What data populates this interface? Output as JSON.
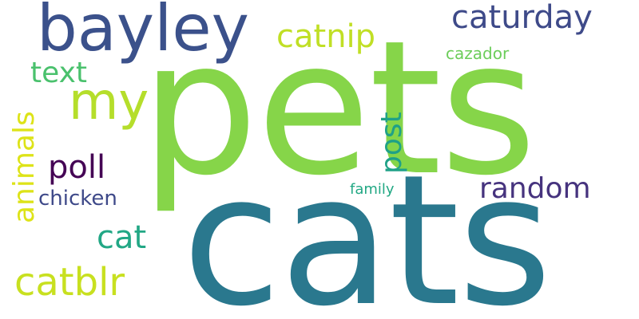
{
  "background": "#ffffff",
  "words": [
    {
      "id": "pets",
      "text": "pets",
      "color": "#86d549"
    },
    {
      "id": "cats",
      "text": "cats",
      "color": "#2a788e"
    },
    {
      "id": "bayley",
      "text": "bayley",
      "color": "#3b518b"
    },
    {
      "id": "caturday",
      "text": "caturday",
      "color": "#3e4a89"
    },
    {
      "id": "catnip",
      "text": "catnip",
      "color": "#c0df25"
    },
    {
      "id": "cazador",
      "text": "cazador",
      "color": "#6ccd5a"
    },
    {
      "id": "text",
      "text": "text",
      "color": "#4ac16d"
    },
    {
      "id": "my",
      "text": "my",
      "color": "#b5de2b"
    },
    {
      "id": "post",
      "text": "post",
      "color": "#1fa187"
    },
    {
      "id": "animals",
      "text": "animals",
      "color": "#dde318"
    },
    {
      "id": "poll",
      "text": "poll",
      "color": "#440154"
    },
    {
      "id": "random",
      "text": "random",
      "color": "#46337e"
    },
    {
      "id": "family",
      "text": "family",
      "color": "#22a884"
    },
    {
      "id": "chicken",
      "text": "chicken",
      "color": "#3e4989"
    },
    {
      "id": "cat",
      "text": "cat",
      "color": "#22a785"
    },
    {
      "id": "catblr",
      "text": "catblr",
      "color": "#c8e020"
    }
  ]
}
